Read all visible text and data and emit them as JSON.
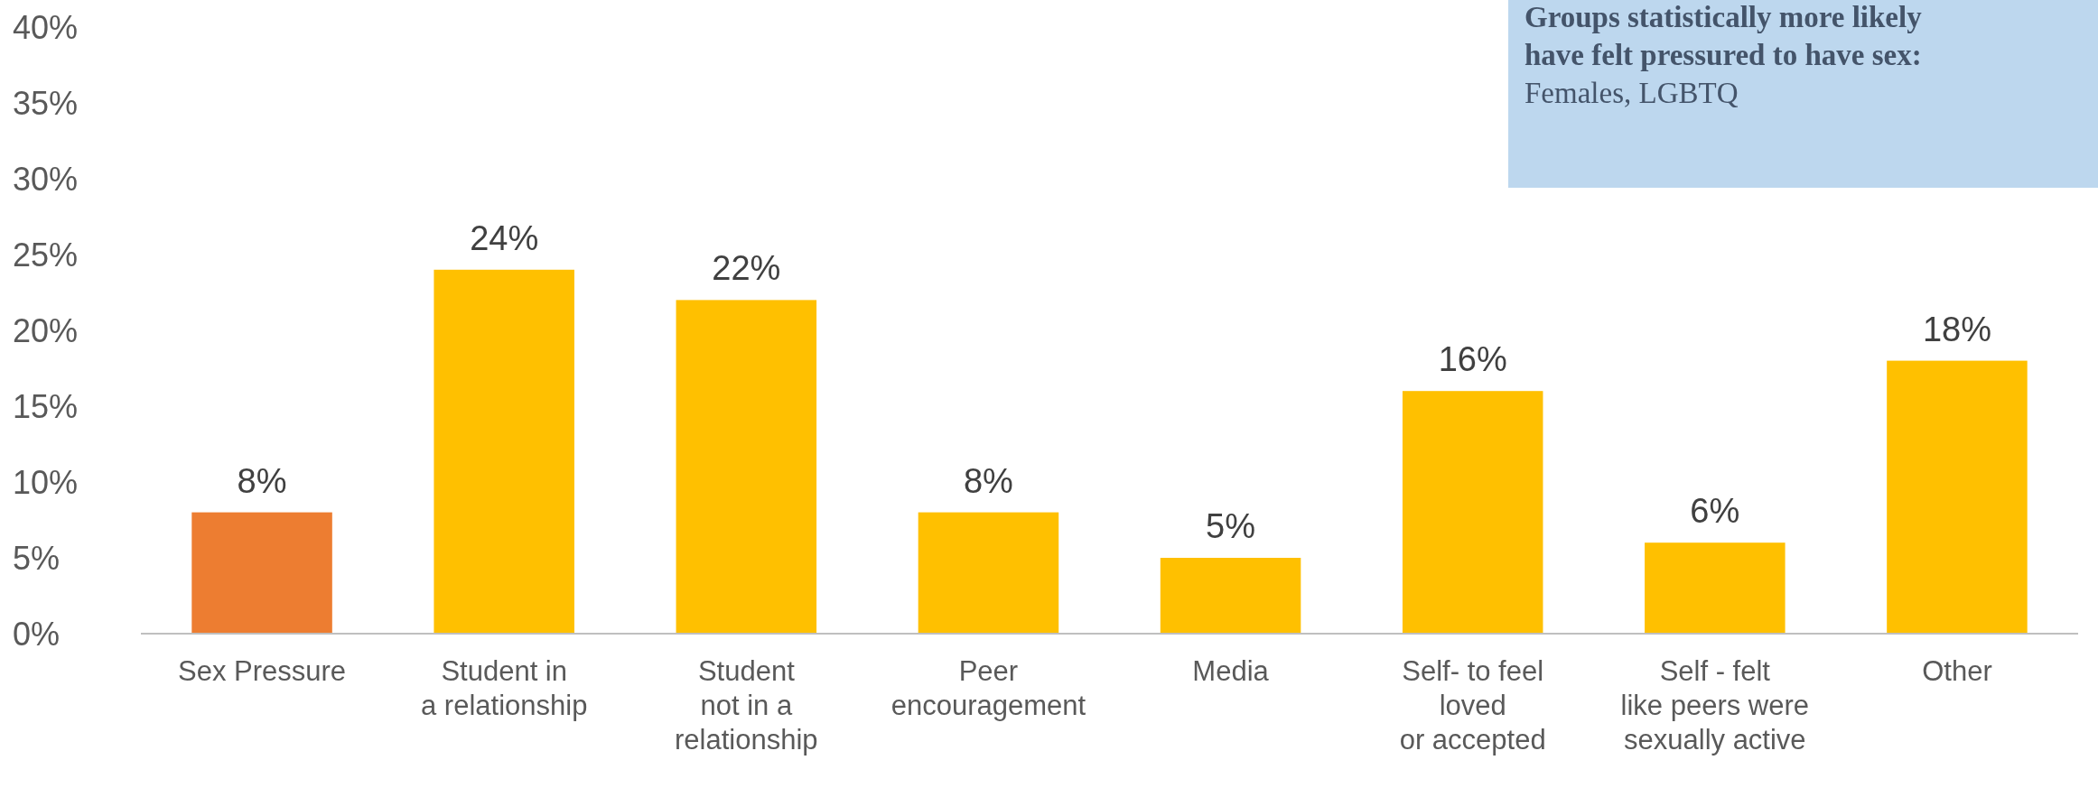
{
  "chart_data": {
    "type": "bar",
    "categories": [
      "Sex Pressure",
      "Student in\na relationship",
      "Student\nnot in a\nrelationship",
      "Peer\nencouragement",
      "Media",
      "Self- to feel\nloved\nor accepted",
      "Self - felt\nlike peers were\nsexually active",
      "Other"
    ],
    "values": [
      8,
      24,
      22,
      8,
      5,
      16,
      6,
      18
    ],
    "colors": [
      "#ed7d31",
      "#ffc000",
      "#ffc000",
      "#ffc000",
      "#ffc000",
      "#ffc000",
      "#ffc000",
      "#ffc000"
    ],
    "ylim": [
      0,
      40
    ],
    "yticks": [
      {
        "value": 0,
        "label": "0%"
      },
      {
        "value": 5,
        "label": "5%"
      },
      {
        "value": 10,
        "label": "10%"
      },
      {
        "value": 15,
        "label": "15%"
      },
      {
        "value": 20,
        "label": "20%"
      },
      {
        "value": 25,
        "label": "25%"
      },
      {
        "value": 30,
        "label": "30%"
      },
      {
        "value": 35,
        "label": "35%"
      },
      {
        "value": 40,
        "label": "40%"
      }
    ],
    "value_labels": [
      "8%",
      "24%",
      "22%",
      "8%",
      "5%",
      "16%",
      "6%",
      "18%"
    ],
    "grid": false,
    "annotations": [
      "Groups statistically more likely have felt pressured to have sex:",
      "Females, LGBTQ"
    ]
  }
}
